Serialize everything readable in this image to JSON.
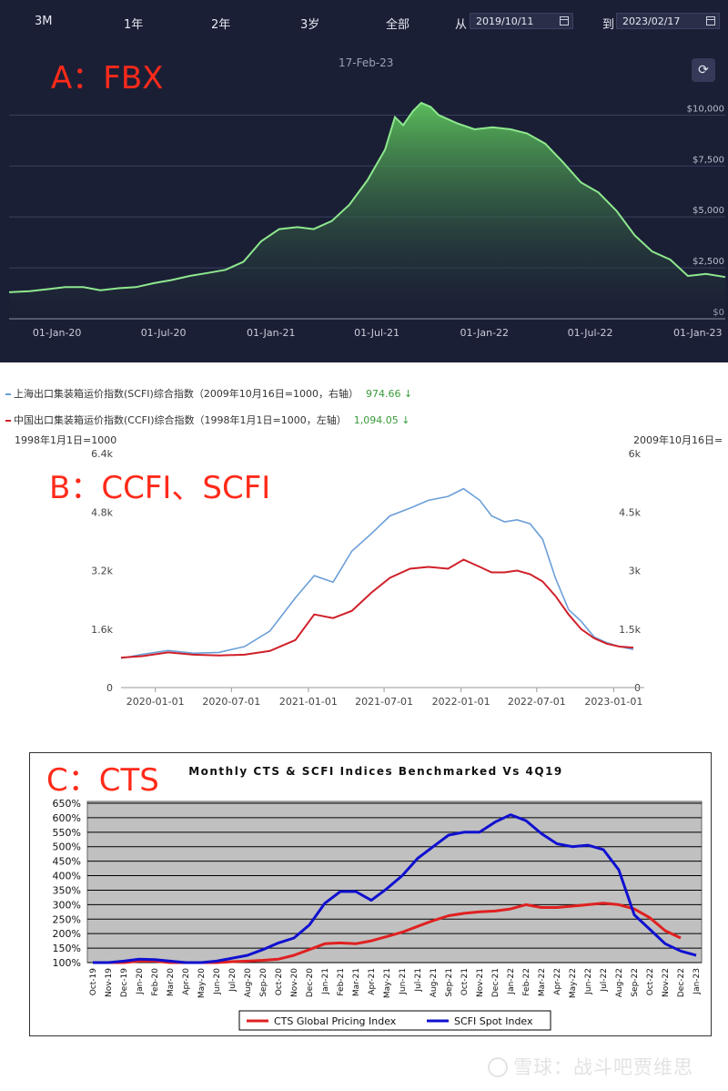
{
  "panel_a": {
    "range_buttons": [
      "3M",
      "1年",
      "2年",
      "3岁",
      "全部"
    ],
    "from_label": "从",
    "from_date": "2019/10/11",
    "to_label": "到",
    "to_date": "2023/02/17",
    "big_label": "A：FBX",
    "date_stamp": "17-Feb-23",
    "share_icon": "share-icon",
    "colors": {
      "background": "#1b1f35",
      "line": "#7ee07e",
      "fill_top": "#4ea84e"
    }
  },
  "panel_b": {
    "big_label": "B：CCFI、SCFI",
    "legend": [
      {
        "text": "上海出口集装箱运价指数(SCFI)综合指数（2009年10月16日=1000，右轴）",
        "value": "974.66",
        "arrow": "↓",
        "color": "#6b9fd8"
      },
      {
        "text": "中国出口集装箱运价指数(CCFI)综合指数（1998年1月1日=1000，左轴）",
        "value": "1,094.05",
        "arrow": "↓",
        "color": "#d0202a"
      }
    ],
    "left_axis_note": "1998年1月1日=1000",
    "right_axis_note": "2009年10月16日="
  },
  "panel_c": {
    "big_label": "C：CTS"
  },
  "watermark": {
    "text": "雪球：战斗吧贾维思"
  },
  "chart_data": [
    {
      "type": "area",
      "title": "",
      "xticks": [
        "01-Jan-20",
        "01-Jul-20",
        "01-Jan-21",
        "01-Jul-21",
        "01-Jan-22",
        "01-Jul-22",
        "01-Jan-23"
      ],
      "yticks": [
        "$10,000",
        "$7,500",
        "$5,000",
        "$2,500",
        "$0"
      ],
      "ylim": [
        0,
        11000
      ],
      "grid": true,
      "series": [
        {
          "name": "",
          "x": [
            "2019-10-11",
            "2019-11-15",
            "2019-12-15",
            "2020-01-15",
            "2020-02-15",
            "2020-03-15",
            "2020-04-15",
            "2020-05-15",
            "2020-06-15",
            "2020-07-15",
            "2020-08-15",
            "2020-09-15",
            "2020-10-15",
            "2020-11-15",
            "2020-12-15",
            "2021-01-15",
            "2021-02-15",
            "2021-03-15",
            "2021-04-15",
            "2021-05-15",
            "2021-06-15",
            "2021-07-15",
            "2021-08-01",
            "2021-08-15",
            "2021-09-01",
            "2021-09-15",
            "2021-10-01",
            "2021-10-15",
            "2021-11-15",
            "2021-12-15",
            "2022-01-15",
            "2022-02-15",
            "2022-03-15",
            "2022-04-15",
            "2022-05-15",
            "2022-06-15",
            "2022-07-15",
            "2022-08-15",
            "2022-09-15",
            "2022-10-15",
            "2022-11-15",
            "2022-12-15",
            "2023-01-15",
            "2023-02-17"
          ],
          "values": [
            1300,
            1350,
            1450,
            1550,
            1550,
            1400,
            1500,
            1550,
            1750,
            1900,
            2100,
            2250,
            2400,
            2800,
            3800,
            4400,
            4500,
            4400,
            4800,
            5600,
            6800,
            8300,
            9900,
            9500,
            10200,
            10600,
            10400,
            10000,
            9600,
            9300,
            9400,
            9300,
            9100,
            8600,
            7700,
            6700,
            6200,
            5300,
            4100,
            3300,
            2900,
            2100,
            2200,
            2050
          ]
        }
      ]
    },
    {
      "type": "line",
      "title": "",
      "x_ticks": [
        "2020-01-01",
        "2020-07-01",
        "2021-01-01",
        "2021-07-01",
        "2022-01-01",
        "2022-07-01",
        "2023-01-01"
      ],
      "left_axis": {
        "ticks": [
          "6.4k",
          "4.8k",
          "3.2k",
          "1.6k",
          "0"
        ],
        "ylim": [
          0,
          6400
        ]
      },
      "right_axis": {
        "ticks": [
          "6k",
          "4.5k",
          "3k",
          "1.5k",
          "0"
        ],
        "ylim": [
          0,
          6000
        ]
      },
      "grid": false,
      "series": [
        {
          "name": "上海出口集装箱运价指数(SCFI)综合指数",
          "axis": "right",
          "x": [
            "2019-10-11",
            "2019-12-01",
            "2020-02-01",
            "2020-04-01",
            "2020-06-01",
            "2020-08-01",
            "2020-10-01",
            "2020-12-01",
            "2021-01-15",
            "2021-03-01",
            "2021-04-15",
            "2021-06-01",
            "2021-07-15",
            "2021-09-01",
            "2021-10-15",
            "2021-12-01",
            "2022-01-07",
            "2022-02-15",
            "2022-03-15",
            "2022-04-15",
            "2022-05-15",
            "2022-06-15",
            "2022-07-15",
            "2022-08-15",
            "2022-09-15",
            "2022-10-15",
            "2022-11-15",
            "2022-12-15",
            "2023-01-15",
            "2023-02-17"
          ],
          "values": [
            750,
            850,
            950,
            880,
            900,
            1050,
            1450,
            2300,
            2870,
            2700,
            3500,
            3950,
            4400,
            4600,
            4800,
            4900,
            5100,
            4800,
            4400,
            4250,
            4300,
            4200,
            3800,
            2800,
            2000,
            1700,
            1300,
            1150,
            1050,
            975
          ]
        },
        {
          "name": "中国出口集装箱运价指数(CCFI)综合指数",
          "axis": "left",
          "x": [
            "2019-10-11",
            "2019-12-01",
            "2020-02-01",
            "2020-04-01",
            "2020-06-01",
            "2020-08-01",
            "2020-10-01",
            "2020-12-01",
            "2021-01-15",
            "2021-03-01",
            "2021-04-15",
            "2021-06-01",
            "2021-07-15",
            "2021-09-01",
            "2021-10-15",
            "2021-12-01",
            "2022-01-07",
            "2022-02-15",
            "2022-03-15",
            "2022-04-15",
            "2022-05-15",
            "2022-06-15",
            "2022-07-15",
            "2022-08-15",
            "2022-09-15",
            "2022-10-15",
            "2022-11-15",
            "2022-12-15",
            "2023-01-15",
            "2023-02-17"
          ],
          "values": [
            820,
            860,
            960,
            900,
            880,
            900,
            1000,
            1300,
            2000,
            1900,
            2100,
            2600,
            3000,
            3250,
            3300,
            3250,
            3500,
            3300,
            3150,
            3150,
            3200,
            3100,
            2900,
            2500,
            2000,
            1600,
            1350,
            1200,
            1120,
            1094
          ]
        }
      ]
    },
    {
      "type": "line",
      "title": "Monthly CTS & SCFI Indices Benchmarked Vs 4Q19",
      "categories": [
        "Oct-19",
        "Nov-19",
        "Dec-19",
        "Jan-20",
        "Feb-20",
        "Mar-20",
        "Apr-20",
        "May-20",
        "Jun-20",
        "Jul-20",
        "Aug-20",
        "Sep-20",
        "Oct-20",
        "Nov-20",
        "Dec-20",
        "Jan-21",
        "Feb-21",
        "Mar-21",
        "Apr-21",
        "May-21",
        "Jun-21",
        "Jul-21",
        "Aug-21",
        "Sep-21",
        "Oct-21",
        "Nov-21",
        "Dec-21",
        "Jan-22",
        "Feb-22",
        "Mar-22",
        "Apr-22",
        "May-22",
        "Jun-22",
        "Jul-22",
        "Aug-22",
        "Sep-22",
        "Oct-22",
        "Nov-22",
        "Dec-22",
        "Jan-23"
      ],
      "yticks": [
        "650%",
        "600%",
        "550%",
        "500%",
        "450%",
        "400%",
        "350%",
        "300%",
        "250%",
        "200%",
        "150%",
        "100%"
      ],
      "ylim": [
        100,
        650
      ],
      "grid": true,
      "legend_position": "bottom",
      "series": [
        {
          "name": "CTS Global Pricing Index",
          "color": "#e02020",
          "values": [
            100,
            100,
            100,
            105,
            105,
            100,
            100,
            100,
            100,
            103,
            105,
            108,
            112,
            125,
            145,
            165,
            168,
            165,
            175,
            190,
            205,
            225,
            245,
            262,
            270,
            275,
            278,
            285,
            300,
            290,
            290,
            295,
            300,
            305,
            300,
            285,
            255,
            210,
            185,
            null
          ]
        },
        {
          "name": "SCFI Spot Index",
          "color": "#1010d0",
          "values": [
            100,
            100,
            105,
            112,
            110,
            105,
            100,
            100,
            105,
            115,
            125,
            145,
            168,
            185,
            230,
            305,
            345,
            345,
            315,
            355,
            400,
            460,
            500,
            540,
            550,
            550,
            585,
            610,
            590,
            545,
            510,
            500,
            505,
            490,
            420,
            265,
            215,
            165,
            140,
            125
          ]
        }
      ]
    }
  ]
}
